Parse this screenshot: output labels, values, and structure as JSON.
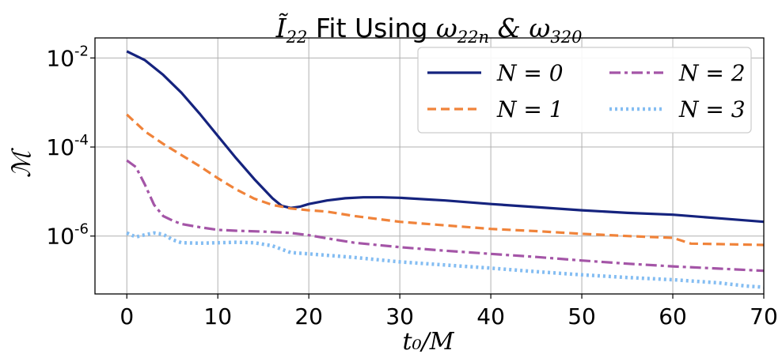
{
  "chart_data": {
    "type": "line",
    "title_prefix": "Ĩ",
    "title_prefix_sub": "22",
    "title_mid": " Fit Using ",
    "title_w1": "ω",
    "title_w1_sub": "22n",
    "title_amp": " & ",
    "title_w2": "ω",
    "title_w2_sub": "320",
    "xlabel": "t₀/M",
    "ylabel": "ℳ",
    "x_range": [
      -3.5,
      70
    ],
    "y_range_log10": [
      -7.3,
      -1.55
    ],
    "y_scale": "log",
    "grid": true,
    "legend_position": "top-right",
    "xticks": [
      0,
      10,
      20,
      30,
      40,
      50,
      60,
      70
    ],
    "yticks": [
      {
        "value_log10": -2,
        "base": "10",
        "exp": "-2"
      },
      {
        "value_log10": -4,
        "base": "10",
        "exp": "-4"
      },
      {
        "value_log10": -6,
        "base": "10",
        "exp": "-6"
      }
    ],
    "series": [
      {
        "name": "N = 0",
        "color": "#15237e",
        "style": "solid",
        "x": [
          0,
          2,
          4,
          6,
          8,
          10,
          12,
          14,
          16,
          17,
          18,
          19,
          20,
          22,
          24,
          26,
          28,
          30,
          35,
          40,
          45,
          50,
          55,
          60,
          65,
          70
        ],
        "y_log10": [
          -1.85,
          -2.05,
          -2.38,
          -2.78,
          -3.25,
          -3.75,
          -4.25,
          -4.72,
          -5.15,
          -5.32,
          -5.37,
          -5.34,
          -5.28,
          -5.2,
          -5.15,
          -5.13,
          -5.13,
          -5.14,
          -5.2,
          -5.28,
          -5.35,
          -5.42,
          -5.48,
          -5.52,
          -5.6,
          -5.68
        ]
      },
      {
        "name": "N = 1",
        "color": "#f0833a",
        "style": "dashed",
        "x": [
          0,
          2,
          4,
          6,
          8,
          10,
          12,
          14,
          16,
          18,
          20,
          22,
          25,
          30,
          35,
          40,
          45,
          50,
          55,
          60,
          62,
          65,
          70
        ],
        "y_log10": [
          -3.27,
          -3.65,
          -3.93,
          -4.18,
          -4.43,
          -4.7,
          -4.95,
          -5.16,
          -5.3,
          -5.38,
          -5.42,
          -5.45,
          -5.55,
          -5.68,
          -5.76,
          -5.84,
          -5.89,
          -5.95,
          -6.0,
          -6.04,
          -6.17,
          -6.18,
          -6.2
        ]
      },
      {
        "name": "N = 2",
        "color": "#a455a7",
        "style": "dashdot",
        "x": [
          0,
          1,
          2,
          3,
          4,
          5,
          6,
          8,
          10,
          12,
          15,
          18,
          20,
          22,
          25,
          30,
          35,
          40,
          45,
          50,
          55,
          60,
          65,
          70
        ],
        "y_log10": [
          -4.3,
          -4.45,
          -4.85,
          -5.3,
          -5.55,
          -5.65,
          -5.73,
          -5.8,
          -5.86,
          -5.88,
          -5.9,
          -5.93,
          -5.98,
          -6.05,
          -6.15,
          -6.25,
          -6.33,
          -6.4,
          -6.47,
          -6.55,
          -6.62,
          -6.68,
          -6.73,
          -6.78
        ]
      },
      {
        "name": "N = 3",
        "color": "#84bdf2",
        "style": "dotted",
        "x": [
          0,
          1,
          2,
          3,
          4,
          5,
          6,
          8,
          10,
          12,
          14,
          16,
          18,
          20,
          25,
          30,
          35,
          40,
          45,
          50,
          55,
          60,
          65,
          68,
          70
        ],
        "y_log10": [
          -5.93,
          -6.02,
          -5.97,
          -5.93,
          -5.96,
          -6.08,
          -6.15,
          -6.16,
          -6.15,
          -6.14,
          -6.15,
          -6.22,
          -6.37,
          -6.4,
          -6.48,
          -6.58,
          -6.65,
          -6.72,
          -6.8,
          -6.87,
          -6.93,
          -6.98,
          -7.05,
          -7.12,
          -7.15
        ]
      }
    ]
  }
}
